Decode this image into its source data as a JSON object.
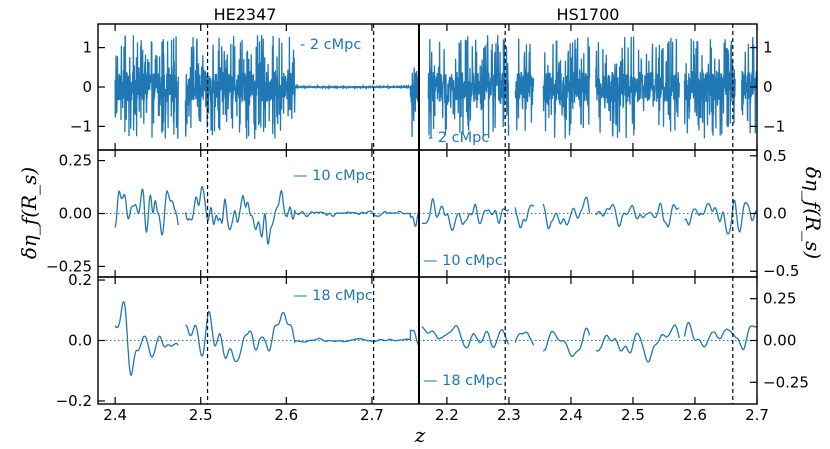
{
  "colors": {
    "line": "#1f77b4",
    "axis": "#000000",
    "annotation": "#1f77b4"
  },
  "chart_data": {
    "type": "line",
    "ylabel": "δη_f(R_s)",
    "xlabel": "z",
    "quasars": [
      {
        "name": "HE2347",
        "xlim": [
          2.38,
          2.755
        ],
        "xticks": [
          2.4,
          2.5,
          2.6,
          2.7
        ],
        "xtick_labels": [
          "2.4",
          "2.5",
          "2.6",
          "2.7"
        ],
        "vlines": [
          2.508,
          2.702
        ],
        "data_range": [
          2.4,
          2.755
        ],
        "quiet_range": [
          2.61,
          2.745
        ],
        "gaps": [
          [
            2.474,
            2.482
          ]
        ]
      },
      {
        "name": "HS1700",
        "xlim": [
          2.155,
          2.7
        ],
        "xticks": [
          2.2,
          2.3,
          2.4,
          2.5,
          2.6,
          2.7
        ],
        "xtick_labels": [
          "2.2",
          "2.3",
          "2.4",
          "2.5",
          "2.6",
          "2.7"
        ],
        "vlines": [
          2.294,
          2.661
        ],
        "data_range": [
          2.16,
          2.7
        ],
        "quiet_range": null,
        "gaps": [
          [
            2.3,
            2.31
          ],
          [
            2.34,
            2.355
          ],
          [
            2.43,
            2.44
          ],
          [
            2.575,
            2.583
          ]
        ]
      }
    ],
    "rows": [
      {
        "smoothing": "2 cMpc",
        "annotation_left": "2 cMpc",
        "annotation_right": "2 cMpc",
        "left_ylim": [
          -1.6,
          1.6
        ],
        "left_yticks": [
          -1,
          0,
          1
        ],
        "left_ytick_labels": [
          "−1",
          "0",
          "1"
        ],
        "right_ylim": [
          -1.6,
          1.6
        ],
        "right_yticks": [
          -1,
          0,
          1
        ],
        "right_ytick_labels": [
          "−1",
          "0",
          "1"
        ],
        "amp": 0.55,
        "zero_line_dotted": false
      },
      {
        "smoothing": "10 cMpc",
        "annotation_left": "10 cMpc",
        "annotation_right": "10 cMpc",
        "left_ylim": [
          -0.3,
          0.3
        ],
        "left_yticks": [
          -0.25,
          0.0,
          0.25
        ],
        "left_ytick_labels": [
          "−0.25",
          "0.00",
          "0.25"
        ],
        "right_ylim": [
          -0.55,
          0.55
        ],
        "right_yticks": [
          -0.5,
          0.0,
          0.5
        ],
        "right_ytick_labels": [
          "−0.5",
          "0.0",
          "0.5"
        ],
        "amp": 0.11,
        "zero_line_dotted": true
      },
      {
        "smoothing": "18 cMpc",
        "annotation_left": "18 cMpc",
        "annotation_right": "18 cMpc",
        "left_ylim": [
          -0.21,
          0.21
        ],
        "left_yticks": [
          -0.2,
          0.0,
          0.2
        ],
        "left_ytick_labels": [
          "−0.2",
          "0.0",
          "0.2"
        ],
        "right_ylim": [
          -0.38,
          0.38
        ],
        "right_yticks": [
          -0.25,
          0.0,
          0.25
        ],
        "right_ytick_labels": [
          "−0.25",
          "0.00",
          "0.25"
        ],
        "amp": 0.08,
        "zero_line_dotted": true
      }
    ]
  }
}
